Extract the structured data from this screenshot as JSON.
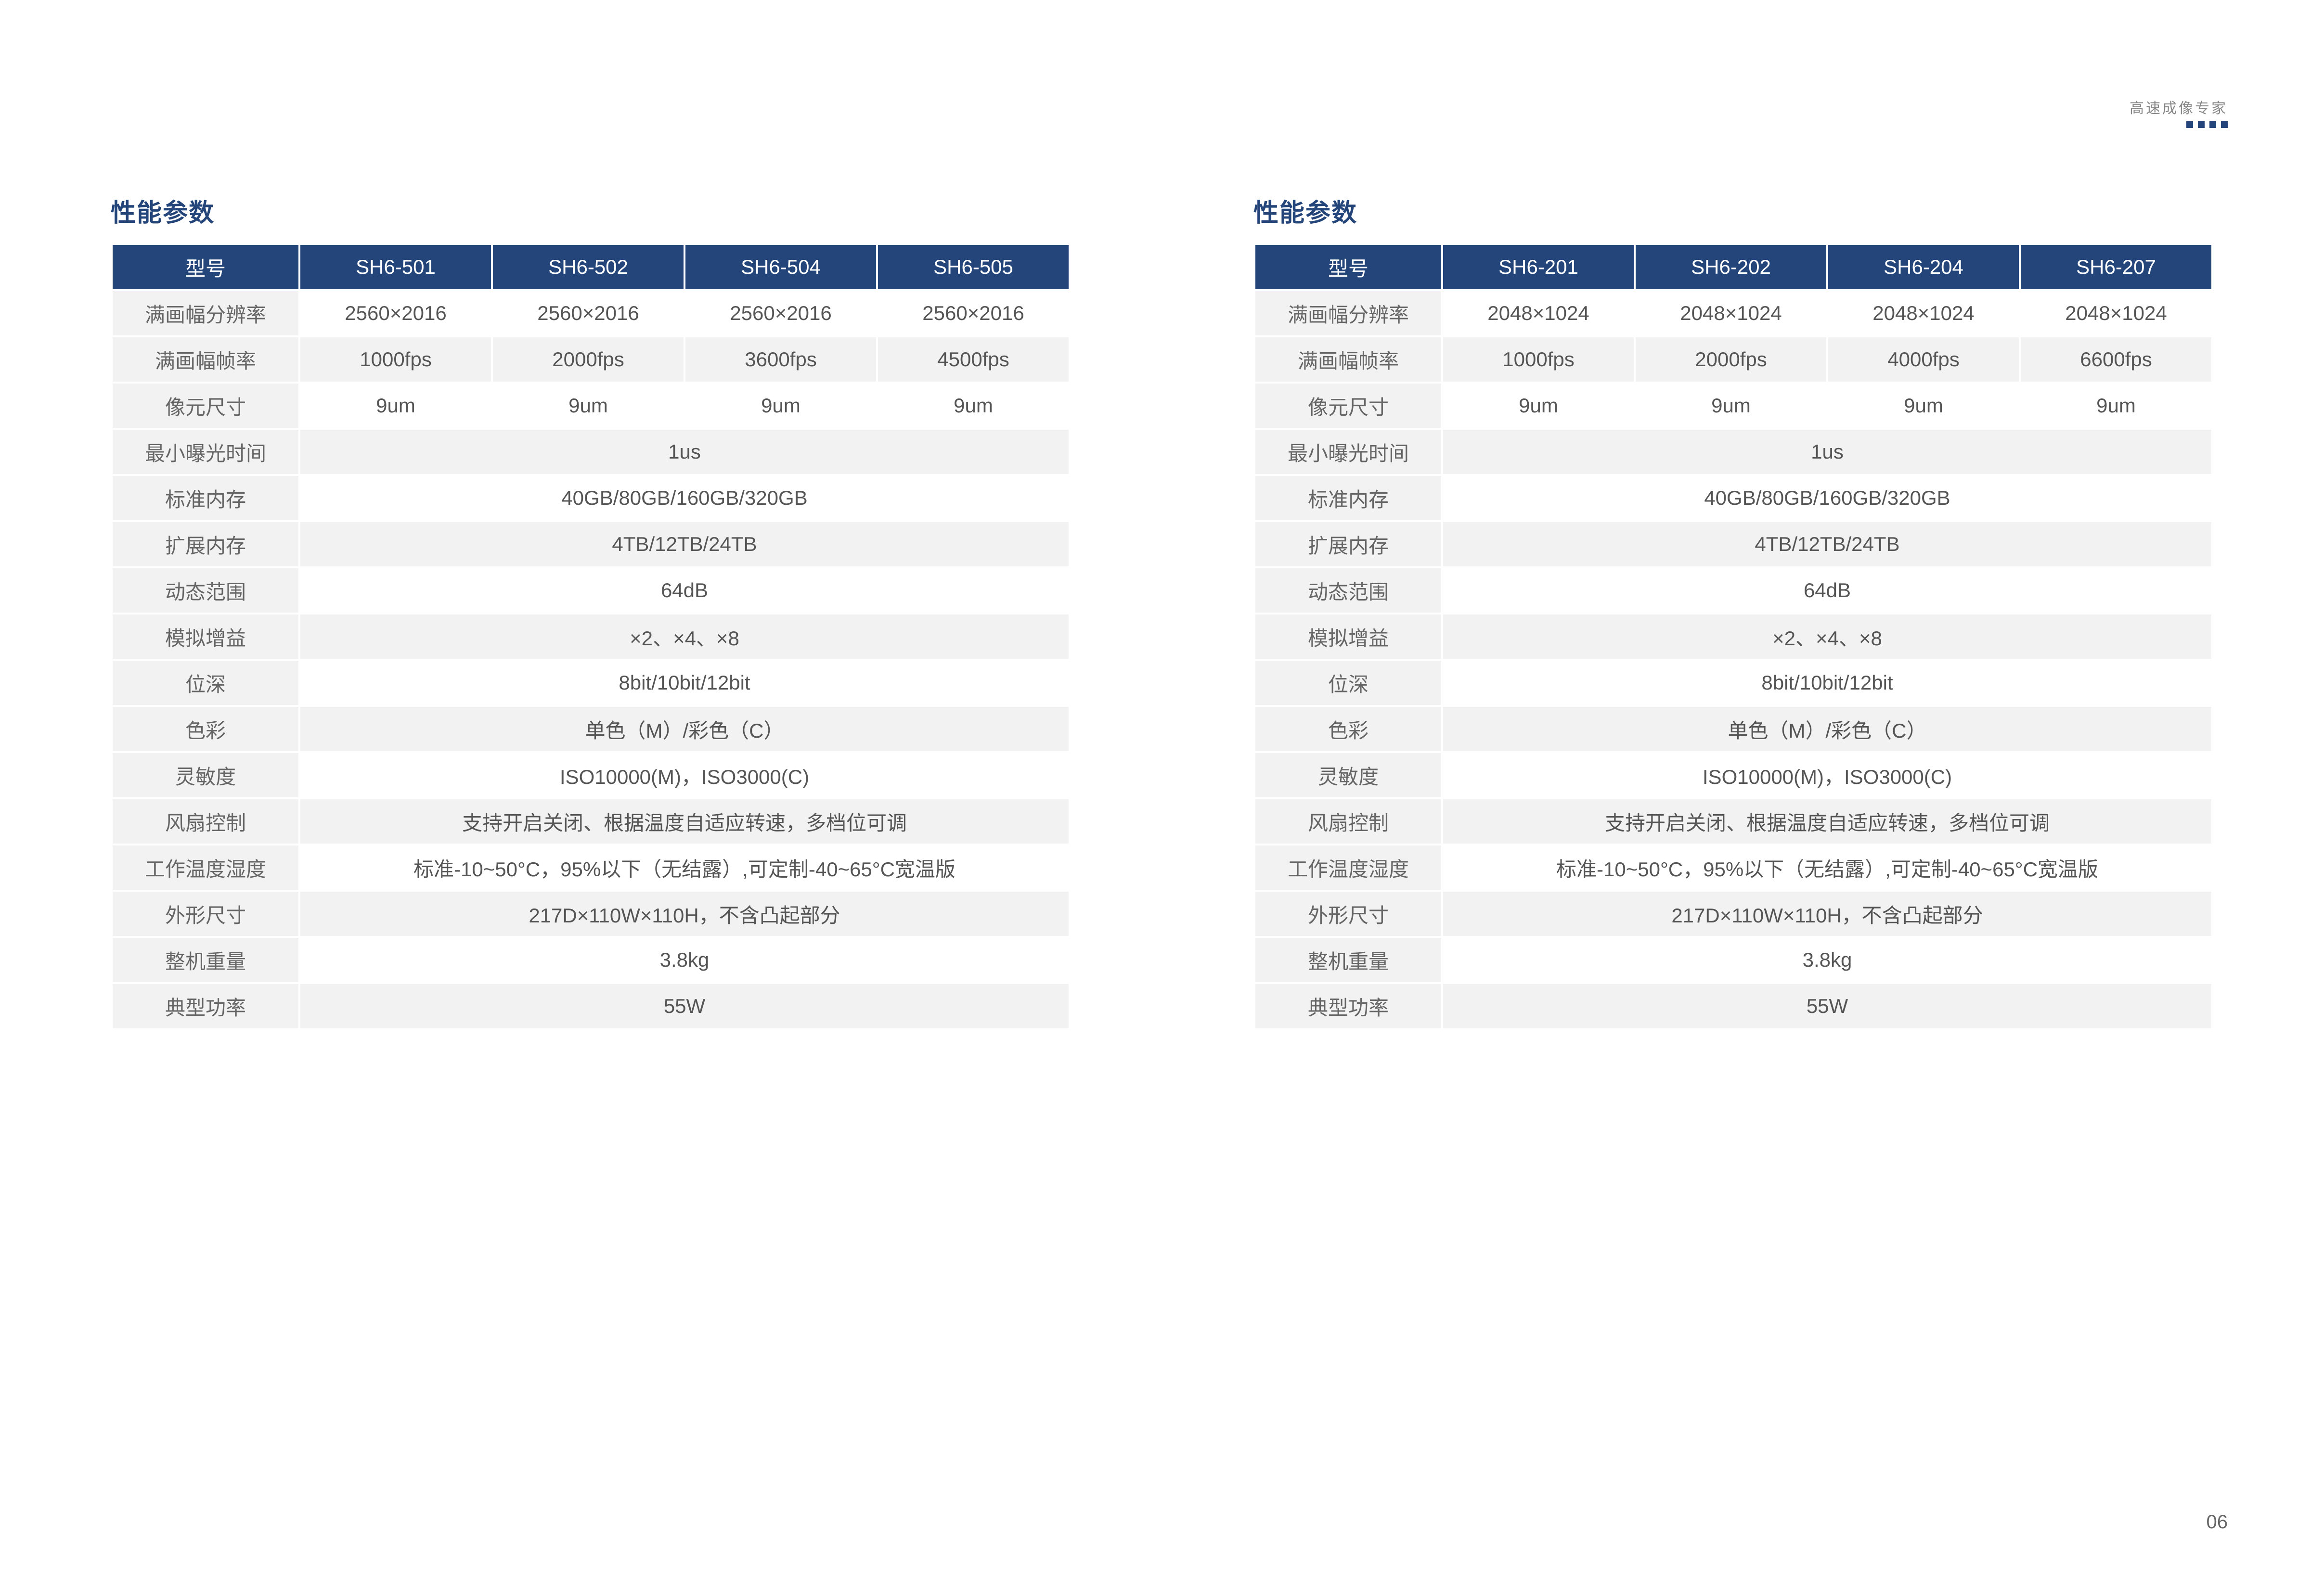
{
  "header_tag": "高速成像专家",
  "page_number": "06",
  "colors": {
    "header_bg": "#24457a",
    "header_fg": "#ffffff",
    "cell_grey": "#f2f2f2",
    "cell_white": "#ffffff",
    "text": "#555555",
    "title": "#24457a"
  },
  "left": {
    "title": "性能参数",
    "columns": [
      "型号",
      "SH6-501",
      "SH6-502",
      "SH6-504",
      "SH6-505"
    ],
    "rows": [
      {
        "label": "满画幅分辨率",
        "vals": [
          "2560×2016",
          "2560×2016",
          "2560×2016",
          "2560×2016"
        ],
        "shade": "w"
      },
      {
        "label": "满画幅帧率",
        "vals": [
          "1000fps",
          "2000fps",
          "3600fps",
          "4500fps"
        ],
        "shade": "g"
      },
      {
        "label": "像元尺寸",
        "vals": [
          "9um",
          "9um",
          "9um",
          "9um"
        ],
        "shade": "w"
      },
      {
        "label": "最小曝光时间",
        "vals": [
          "1us"
        ],
        "span": 4,
        "shade": "g"
      },
      {
        "label": "标准内存",
        "vals": [
          "40GB/80GB/160GB/320GB"
        ],
        "span": 4,
        "shade": "w"
      },
      {
        "label": "扩展内存",
        "vals": [
          "4TB/12TB/24TB"
        ],
        "span": 4,
        "shade": "g"
      },
      {
        "label": "动态范围",
        "vals": [
          "64dB"
        ],
        "span": 4,
        "shade": "w"
      },
      {
        "label": "模拟增益",
        "vals": [
          "×2、×4、×8"
        ],
        "span": 4,
        "shade": "g"
      },
      {
        "label": "位深",
        "vals": [
          "8bit/10bit/12bit"
        ],
        "span": 4,
        "shade": "w"
      },
      {
        "label": "色彩",
        "vals": [
          "单色（M）/彩色（C）"
        ],
        "span": 4,
        "shade": "g"
      },
      {
        "label": "灵敏度",
        "vals": [
          "ISO10000(M)，ISO3000(C)"
        ],
        "span": 4,
        "shade": "w"
      },
      {
        "label": "风扇控制",
        "vals": [
          "支持开启关闭、根据温度自适应转速，多档位可调"
        ],
        "span": 4,
        "shade": "g"
      },
      {
        "label": "工作温度湿度",
        "vals": [
          "标准-10~50°C，95%以下（无结露）,可定制-40~65°C宽温版"
        ],
        "span": 4,
        "shade": "w"
      },
      {
        "label": "外形尺寸",
        "vals": [
          "217D×110W×110H，不含凸起部分"
        ],
        "span": 4,
        "shade": "g"
      },
      {
        "label": "整机重量",
        "vals": [
          "3.8kg"
        ],
        "span": 4,
        "shade": "w"
      },
      {
        "label": "典型功率",
        "vals": [
          "55W"
        ],
        "span": 4,
        "shade": "g"
      }
    ]
  },
  "right": {
    "title": "性能参数",
    "columns": [
      "型号",
      "SH6-201",
      "SH6-202",
      "SH6-204",
      "SH6-207"
    ],
    "rows": [
      {
        "label": "满画幅分辨率",
        "vals": [
          "2048×1024",
          "2048×1024",
          "2048×1024",
          "2048×1024"
        ],
        "shade": "w"
      },
      {
        "label": "满画幅帧率",
        "vals": [
          "1000fps",
          "2000fps",
          "4000fps",
          "6600fps"
        ],
        "shade": "g"
      },
      {
        "label": "像元尺寸",
        "vals": [
          "9um",
          "9um",
          "9um",
          "9um"
        ],
        "shade": "w"
      },
      {
        "label": "最小曝光时间",
        "vals": [
          "1us"
        ],
        "span": 4,
        "shade": "g"
      },
      {
        "label": "标准内存",
        "vals": [
          "40GB/80GB/160GB/320GB"
        ],
        "span": 4,
        "shade": "w"
      },
      {
        "label": "扩展内存",
        "vals": [
          "4TB/12TB/24TB"
        ],
        "span": 4,
        "shade": "g"
      },
      {
        "label": "动态范围",
        "vals": [
          "64dB"
        ],
        "span": 4,
        "shade": "w"
      },
      {
        "label": "模拟增益",
        "vals": [
          "×2、×4、×8"
        ],
        "span": 4,
        "shade": "g"
      },
      {
        "label": "位深",
        "vals": [
          "8bit/10bit/12bit"
        ],
        "span": 4,
        "shade": "w"
      },
      {
        "label": "色彩",
        "vals": [
          "单色（M）/彩色（C）"
        ],
        "span": 4,
        "shade": "g"
      },
      {
        "label": "灵敏度",
        "vals": [
          "ISO10000(M)，ISO3000(C)"
        ],
        "span": 4,
        "shade": "w"
      },
      {
        "label": "风扇控制",
        "vals": [
          "支持开启关闭、根据温度自适应转速，多档位可调"
        ],
        "span": 4,
        "shade": "g"
      },
      {
        "label": "工作温度湿度",
        "vals": [
          "标准-10~50°C，95%以下（无结露）,可定制-40~65°C宽温版"
        ],
        "span": 4,
        "shade": "w"
      },
      {
        "label": "外形尺寸",
        "vals": [
          "217D×110W×110H，不含凸起部分"
        ],
        "span": 4,
        "shade": "g"
      },
      {
        "label": "整机重量",
        "vals": [
          "3.8kg"
        ],
        "span": 4,
        "shade": "w"
      },
      {
        "label": "典型功率",
        "vals": [
          "55W"
        ],
        "span": 4,
        "shade": "g"
      }
    ]
  }
}
